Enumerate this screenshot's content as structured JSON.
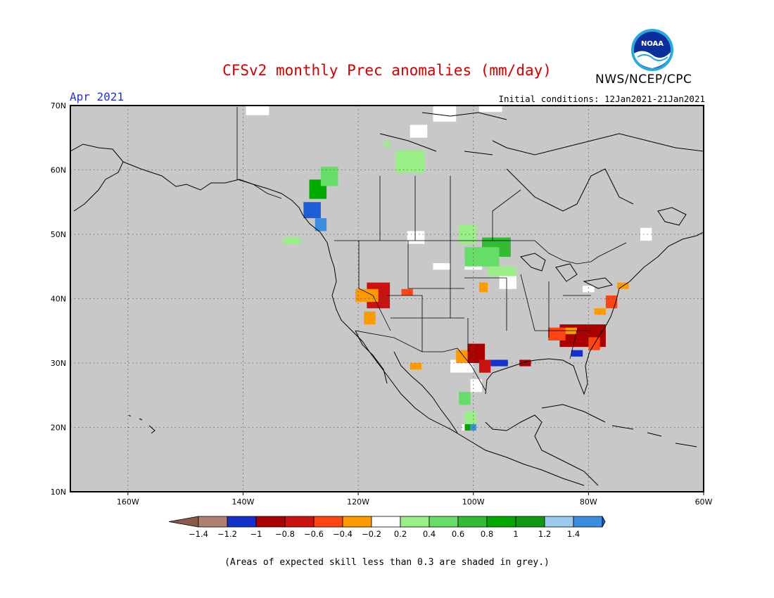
{
  "header": {
    "title": "CFSv2 monthly Prec anomalies (mm/day)",
    "agency": "NWS/NCEP/CPC",
    "logo_text": "NOAA",
    "month": "Apr 2021",
    "initial_conditions": "Initial conditions: 12Jan2021-21Jan2021"
  },
  "map": {
    "projection": "lat-lon",
    "lon_range": [
      -170,
      -60
    ],
    "lat_range": [
      10,
      70
    ],
    "lon_labels": [
      {
        "lon": -160,
        "label": "160W"
      },
      {
        "lon": -140,
        "label": "140W"
      },
      {
        "lon": -120,
        "label": "120W"
      },
      {
        "lon": -100,
        "label": "100W"
      },
      {
        "lon": -80,
        "label": "80W"
      },
      {
        "lon": -60,
        "label": "60W"
      }
    ],
    "lat_labels": [
      {
        "lat": 70,
        "label": "70N"
      },
      {
        "lat": 60,
        "label": "60N"
      },
      {
        "lat": 50,
        "label": "50N"
      },
      {
        "lat": 40,
        "label": "40N"
      },
      {
        "lat": 30,
        "label": "30N"
      },
      {
        "lat": 20,
        "label": "20N"
      },
      {
        "lat": 10,
        "label": "10N"
      }
    ],
    "background_color": "#c8c8c8",
    "anomaly_cells": [
      {
        "lon": -128.5,
        "lat": 55.5,
        "w": 3,
        "h": 3,
        "color": "#00aa00"
      },
      {
        "lon": -126.5,
        "lat": 57.5,
        "w": 3,
        "h": 3,
        "color": "#66dd66"
      },
      {
        "lon": -129.5,
        "lat": 52.5,
        "w": 3,
        "h": 2.5,
        "color": "#1c5ed6"
      },
      {
        "lon": -127.5,
        "lat": 50.5,
        "w": 2,
        "h": 2,
        "color": "#3a8ee0"
      },
      {
        "lon": -113.5,
        "lat": 59.5,
        "w": 5,
        "h": 3.5,
        "color": "#99ee88"
      },
      {
        "lon": -102.5,
        "lat": 48.5,
        "w": 3,
        "h": 3,
        "color": "#99ee88"
      },
      {
        "lon": -98.5,
        "lat": 46.5,
        "w": 5,
        "h": 3,
        "color": "#33bb33"
      },
      {
        "lon": -101.5,
        "lat": 45,
        "w": 6,
        "h": 3,
        "color": "#66dd66"
      },
      {
        "lon": -97.5,
        "lat": 43.5,
        "w": 5,
        "h": 1.5,
        "color": "#99ee88"
      },
      {
        "lon": -118.5,
        "lat": 38.5,
        "w": 4,
        "h": 4,
        "color": "#cc1111"
      },
      {
        "lon": -120.5,
        "lat": 39.5,
        "w": 4,
        "h": 2,
        "color": "#ff9900"
      },
      {
        "lon": -119,
        "lat": 36,
        "w": 2,
        "h": 2,
        "color": "#ff9900"
      },
      {
        "lon": -112.5,
        "lat": 40.5,
        "w": 2,
        "h": 1,
        "color": "#ff4411"
      },
      {
        "lon": -99,
        "lat": 41,
        "w": 1.5,
        "h": 1.5,
        "color": "#ff9900"
      },
      {
        "lon": -101,
        "lat": 30,
        "w": 3,
        "h": 3,
        "color": "#aa0000"
      },
      {
        "lon": -99,
        "lat": 28.5,
        "w": 2,
        "h": 2,
        "color": "#cc1111"
      },
      {
        "lon": -103,
        "lat": 30,
        "w": 2,
        "h": 2,
        "color": "#ff9900"
      },
      {
        "lon": -97,
        "lat": 29.5,
        "w": 3,
        "h": 1,
        "color": "#1133cc"
      },
      {
        "lon": -92,
        "lat": 29.5,
        "w": 2,
        "h": 1,
        "color": "#aa0000"
      },
      {
        "lon": -85,
        "lat": 32.5,
        "w": 8,
        "h": 3.5,
        "color": "#aa0000"
      },
      {
        "lon": -87,
        "lat": 33.5,
        "w": 3,
        "h": 2,
        "color": "#ff4411"
      },
      {
        "lon": -84,
        "lat": 34.5,
        "w": 2,
        "h": 1,
        "color": "#ff9900"
      },
      {
        "lon": -83,
        "lat": 31,
        "w": 2,
        "h": 1,
        "color": "#1133cc"
      },
      {
        "lon": -80,
        "lat": 32,
        "w": 2,
        "h": 2,
        "color": "#ff4411"
      },
      {
        "lon": -77,
        "lat": 38.5,
        "w": 2,
        "h": 2,
        "color": "#ff4411"
      },
      {
        "lon": -75,
        "lat": 41.5,
        "w": 2,
        "h": 1,
        "color": "#ff9900"
      },
      {
        "lon": -79,
        "lat": 37.5,
        "w": 2,
        "h": 1,
        "color": "#ff9900"
      },
      {
        "lon": -102.5,
        "lat": 23.5,
        "w": 2,
        "h": 2,
        "color": "#66dd66"
      },
      {
        "lon": -101.5,
        "lat": 20.5,
        "w": 2,
        "h": 2,
        "color": "#99ee88"
      },
      {
        "lon": -100.5,
        "lat": 19.5,
        "w": 1,
        "h": 1,
        "color": "#3a8ee0"
      },
      {
        "lon": -101.5,
        "lat": 19.5,
        "w": 1,
        "h": 1,
        "color": "#00aa00"
      },
      {
        "lon": -111,
        "lat": 29,
        "w": 2,
        "h": 1,
        "color": "#ff9900"
      },
      {
        "lon": -133,
        "lat": 48.5,
        "w": 3,
        "h": 1,
        "color": "#99ee88"
      },
      {
        "lon": -115.5,
        "lat": 63.5,
        "w": 1,
        "h": 1,
        "color": "#99ee88"
      }
    ],
    "white_cells": [
      {
        "lon": -139.5,
        "lat": 68.5,
        "w": 4,
        "h": 2
      },
      {
        "lon": -111.5,
        "lat": 48.5,
        "w": 3,
        "h": 2
      },
      {
        "lon": -107,
        "lat": 44.5,
        "w": 3,
        "h": 1
      },
      {
        "lon": -99,
        "lat": 69,
        "w": 4,
        "h": 2
      },
      {
        "lon": -107,
        "lat": 67.5,
        "w": 4,
        "h": 3
      },
      {
        "lon": -111,
        "lat": 65,
        "w": 3,
        "h": 2
      },
      {
        "lon": -112.5,
        "lat": 61,
        "w": 2,
        "h": 1
      },
      {
        "lon": -95.5,
        "lat": 41.5,
        "w": 3,
        "h": 2
      },
      {
        "lon": -101.5,
        "lat": 44.5,
        "w": 3,
        "h": 2
      },
      {
        "lon": -104,
        "lat": 28.5,
        "w": 4,
        "h": 2
      },
      {
        "lon": -100.5,
        "lat": 25.5,
        "w": 2,
        "h": 2
      },
      {
        "lon": -102,
        "lat": 19.5,
        "w": 2,
        "h": 1
      },
      {
        "lon": -81,
        "lat": 41,
        "w": 2,
        "h": 1
      },
      {
        "lon": -71,
        "lat": 49,
        "w": 2,
        "h": 2
      }
    ]
  },
  "colorbar": {
    "entries": [
      {
        "color": "#8b5a4a",
        "label": "-1.4"
      },
      {
        "color": "#b08070",
        "label": "-1.2"
      },
      {
        "color": "#1133cc",
        "label": "-1"
      },
      {
        "color": "#aa0000",
        "label": "-0.8"
      },
      {
        "color": "#cc1111",
        "label": "-0.6"
      },
      {
        "color": "#ff4411",
        "label": "-0.4"
      },
      {
        "color": "#ff9900",
        "label": "-0.2"
      },
      {
        "color": "#ffffff",
        "label": "0.2"
      },
      {
        "color": "#99ee88",
        "label": "0.4"
      },
      {
        "color": "#66dd66",
        "label": "0.6"
      },
      {
        "color": "#33bb33",
        "label": "0.8"
      },
      {
        "color": "#00aa00",
        "label": "1"
      },
      {
        "color": "#119911",
        "label": "1.2"
      },
      {
        "color": "#99ccee",
        "label": "1.4"
      },
      {
        "color": "#3a8ee0",
        "label": ""
      },
      {
        "color": "#1c5ed6",
        "label": ""
      }
    ]
  },
  "footnote": "(Areas of expected skill less than 0.3 are shaded in grey.)"
}
